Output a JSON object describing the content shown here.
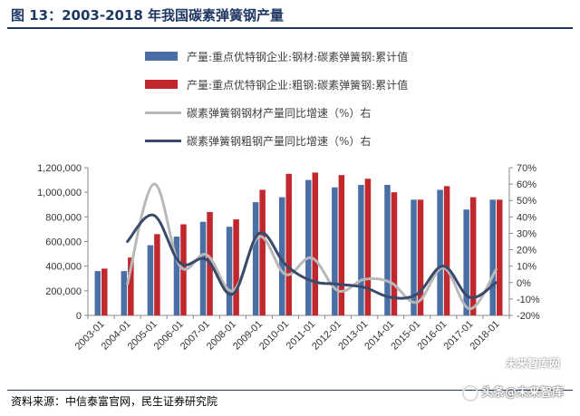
{
  "header": {
    "title": "图 13：2003-2018 年我国碳素弹簧钢产量"
  },
  "footer": {
    "source": "资料来源：中信泰富官网，民生证券研究院",
    "watermark": "头条@未来智库",
    "watermark_top": "未来智库网"
  },
  "chart_data": {
    "type": "bar",
    "categories": [
      "2003-01",
      "2004-01",
      "2005-01",
      "2006-01",
      "2007-01",
      "2008-01",
      "2009-01",
      "2010-01",
      "2011-01",
      "2012-01",
      "2013-01",
      "2014-01",
      "2015-01",
      "2016-01",
      "2017-01",
      "2018-01"
    ],
    "series": [
      {
        "name": "产量:重点优特钢企业:钢材:碳素弹簧钢:累计值",
        "kind": "bar",
        "axis": "left",
        "color": "#4a6fa5",
        "values": [
          360000,
          360000,
          570000,
          640000,
          760000,
          720000,
          920000,
          960000,
          1100000,
          1040000,
          1060000,
          1060000,
          940000,
          1020000,
          860000,
          940000
        ]
      },
      {
        "name": "产量:重点优特钢企业:粗钢:碳素弹簧钢:累计值",
        "kind": "bar",
        "axis": "left",
        "color": "#c0282d",
        "values": [
          380000,
          470000,
          660000,
          740000,
          840000,
          780000,
          1020000,
          1150000,
          1160000,
          1140000,
          1110000,
          1000000,
          940000,
          1050000,
          960000,
          940000
        ]
      },
      {
        "name": "碳素弹簧钢钢材产量同比增速（%）右",
        "kind": "line",
        "axis": "right",
        "color": "#b8b8b8",
        "values": [
          null,
          -1,
          60,
          10,
          17,
          -5,
          28,
          5,
          15,
          -5,
          2,
          0,
          -12,
          9,
          -16,
          8
        ]
      },
      {
        "name": "碳素弹簧钢粗钢产量同比增速（%）右",
        "kind": "line",
        "axis": "right",
        "color": "#3a4a6b",
        "values": [
          null,
          25,
          41,
          12,
          14,
          -7,
          30,
          11,
          1,
          -1,
          -3,
          -9,
          -7,
          10,
          -9,
          0
        ]
      }
    ],
    "left_axis": {
      "ylim": [
        0,
        1200000
      ],
      "ticks": [
        "0",
        "200,000",
        "400,000",
        "600,000",
        "800,000",
        "1,000,000",
        "1,200,000"
      ]
    },
    "right_axis": {
      "ylim": [
        -20,
        70
      ],
      "ticks": [
        "-20%",
        "-10%",
        "0%",
        "10%",
        "20%",
        "30%",
        "40%",
        "50%",
        "60%",
        "70%"
      ]
    },
    "legend_position": "top",
    "grid": false
  }
}
